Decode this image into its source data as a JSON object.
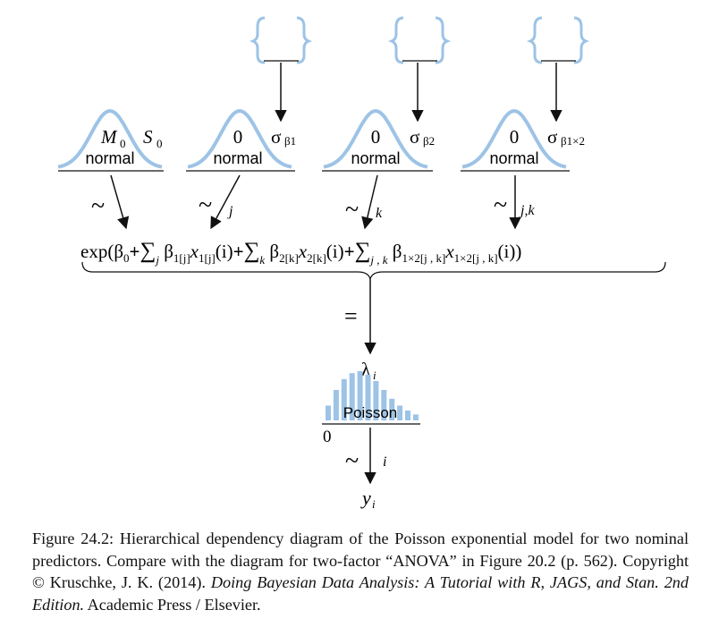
{
  "priors": [
    {
      "mean": "M",
      "mean_sub": "0",
      "scale": "S",
      "scale_sub": "0",
      "dist": "normal"
    },
    {
      "mean": "0",
      "sigma": "σ",
      "sigma_sub": "β1",
      "dist": "normal",
      "index": "j"
    },
    {
      "mean": "0",
      "sigma": "σ",
      "sigma_sub": "β2",
      "dist": "normal",
      "index": "k"
    },
    {
      "mean": "0",
      "sigma": "σ",
      "sigma_sub": "β1×2",
      "dist": "normal",
      "index": "j,k"
    }
  ],
  "tilde": "~",
  "equals": "=",
  "formula": {
    "exp": "exp",
    "beta": "β",
    "b0_sub": "0",
    "plus": "+",
    "sum": "∑",
    "sub_j": "j",
    "sub_k": "k",
    "sub_jk": "j , k",
    "b1_sub": "1[j]",
    "x1_sub": "1[j]",
    "b2_sub": "2[k]",
    "x2_sub": "2[k]",
    "b12_sub": "1×2[j , k]",
    "x12_sub": "1×2[j , k]",
    "x": "x",
    "i_arg": "(i)",
    "open": "(",
    "close": ")"
  },
  "likelihood": {
    "lambda": "λ",
    "lambda_sub": "i",
    "dist": "Poisson",
    "zero": "0",
    "index": "i",
    "y": "y",
    "y_sub": "i",
    "bar_heights": [
      0.3,
      0.62,
      0.84,
      0.96,
      1.0,
      0.93,
      0.8,
      0.62,
      0.44,
      0.3,
      0.2,
      0.12
    ]
  },
  "colors": {
    "curve": "#9dc3e6",
    "line": "#111111"
  },
  "caption": {
    "part1": "Figure 24.2: Hierarchical dependency diagram of the Poisson exponential model for two nominal predictors. Compare with the diagram for two-factor “ANOVA” in Figure 20.2 (p. 562). Copyright © Kruschke, J. K. (2014). ",
    "italic": "Doing Bayesian Data Analysis: A Tutorial with R, JAGS, and Stan. 2nd Edition.",
    "part2": " Academic Press / Elsevier."
  }
}
